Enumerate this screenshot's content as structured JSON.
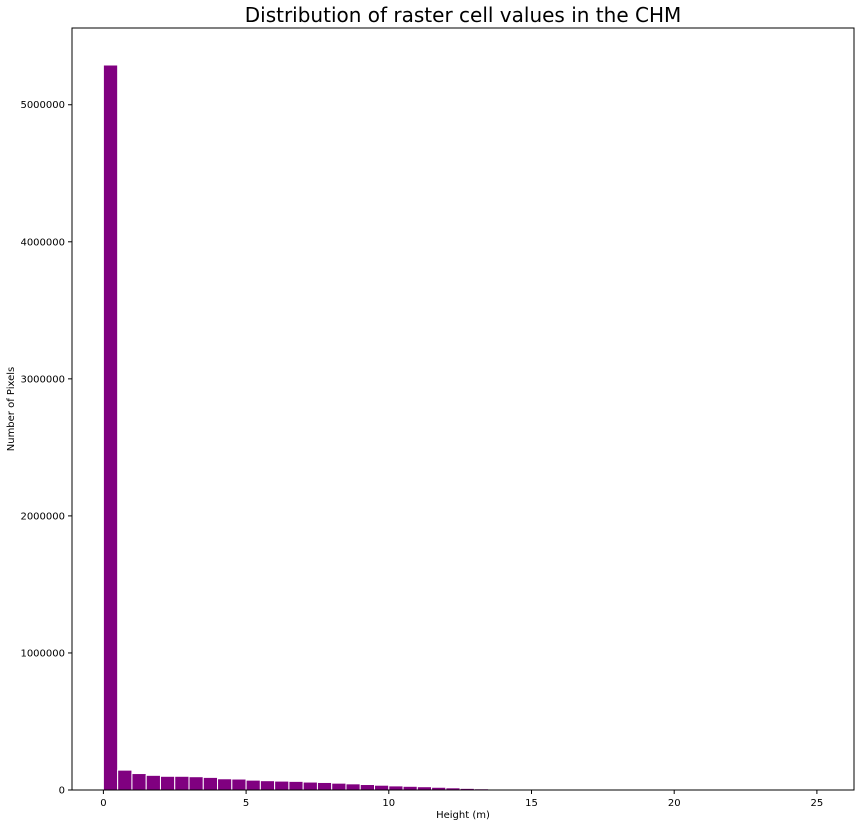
{
  "chart_data": {
    "type": "bar",
    "title": "Distribution of raster cell values in the CHM",
    "xlabel": "Height (m)",
    "ylabel": "Number of Pixels",
    "xlim": [
      -1.1,
      26.3
    ],
    "ylim": [
      0,
      5560000
    ],
    "xticks": [
      0,
      5,
      10,
      15,
      20,
      25
    ],
    "yticks": [
      0,
      1000000,
      2000000,
      3000000,
      4000000,
      5000000
    ],
    "grid": false,
    "bar_color": "#800080",
    "bar_edge_color": "#ffffff",
    "bin_width": 0.5,
    "series": [
      {
        "x": [
          0.0,
          0.5,
          1.0,
          1.5,
          2.0,
          2.5,
          3.0,
          3.5,
          4.0,
          4.5,
          5.0,
          5.5,
          6.0,
          6.5,
          7.0,
          7.5,
          8.0,
          8.5,
          9.0,
          9.5,
          10.0,
          10.5,
          11.0,
          11.5,
          12.0,
          12.5,
          13.0,
          13.5,
          14.0,
          14.5,
          15.0,
          15.5,
          16.0,
          16.5,
          17.0,
          17.5,
          18.0,
          18.5,
          19.0,
          19.5,
          20.0,
          20.5,
          21.0,
          21.5,
          22.0,
          22.5,
          23.0,
          23.5,
          24.0,
          24.5
        ],
        "values": [
          5290000,
          145000,
          120000,
          107000,
          100000,
          100000,
          97000,
          92000,
          82000,
          80000,
          72000,
          68000,
          65000,
          63000,
          58000,
          55000,
          50000,
          45000,
          40000,
          35000,
          30000,
          27000,
          24000,
          20000,
          16000,
          12000,
          9000,
          6000,
          4000,
          2000,
          800,
          400,
          200,
          100,
          50,
          30,
          20,
          10,
          5,
          3,
          2,
          1,
          1,
          1,
          1,
          0,
          0,
          0,
          0,
          1
        ]
      }
    ]
  }
}
